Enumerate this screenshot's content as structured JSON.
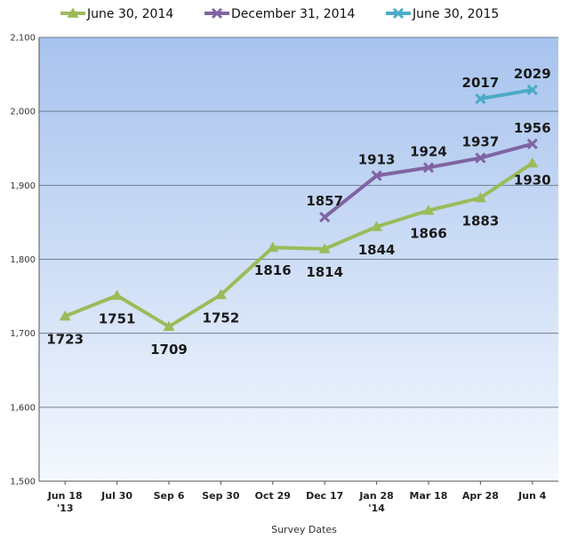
{
  "chart_data": {
    "type": "line",
    "title": "",
    "xlabel": "Survey Dates",
    "ylabel": "",
    "ylim": [
      1500,
      2100
    ],
    "ytick_values": [
      1500,
      1600,
      1700,
      1800,
      1900,
      2000,
      2100
    ],
    "ytick_labels": [
      "1,500",
      "1,600",
      "1,700",
      "1,800",
      "1,900",
      "2,000",
      "2,100"
    ],
    "categories": [
      [
        "Jun 18",
        "'13"
      ],
      [
        "Jul 30"
      ],
      [
        "Sep 6"
      ],
      [
        "Sep 30"
      ],
      [
        "Oct 29"
      ],
      [
        "Dec 17"
      ],
      [
        "Jan 28",
        "'14"
      ],
      [
        "Mar 18"
      ],
      [
        "Apr 28"
      ],
      [
        "Jun 4"
      ]
    ],
    "legend_position": "top",
    "grid": true,
    "background_gradient": [
      "#a7c3ee",
      "#f4f8fe"
    ],
    "series": [
      {
        "name": "June 30, 2014",
        "color": "#9bbb59",
        "marker": "triangle",
        "values": [
          1723,
          1751,
          1709,
          1752,
          1816,
          1814,
          1844,
          1866,
          1883,
          1930
        ],
        "labels": [
          "1723",
          "1751",
          "1709",
          "1752",
          "1816",
          "1814",
          "1844",
          "1866",
          "1883",
          "1930"
        ]
      },
      {
        "name": "December 31, 2014",
        "color": "#8064a2",
        "marker": "x",
        "values": [
          null,
          null,
          null,
          null,
          null,
          1857,
          1913,
          1924,
          1937,
          1956
        ],
        "labels": [
          null,
          null,
          null,
          null,
          null,
          "1857",
          "1913",
          "1924",
          "1937",
          "1956"
        ]
      },
      {
        "name": "June 30, 2015",
        "color": "#4bacc6",
        "marker": "x",
        "values": [
          null,
          null,
          null,
          null,
          null,
          null,
          null,
          null,
          2017,
          2029
        ],
        "labels": [
          null,
          null,
          null,
          null,
          null,
          null,
          null,
          null,
          "2017",
          "2029"
        ]
      }
    ]
  }
}
